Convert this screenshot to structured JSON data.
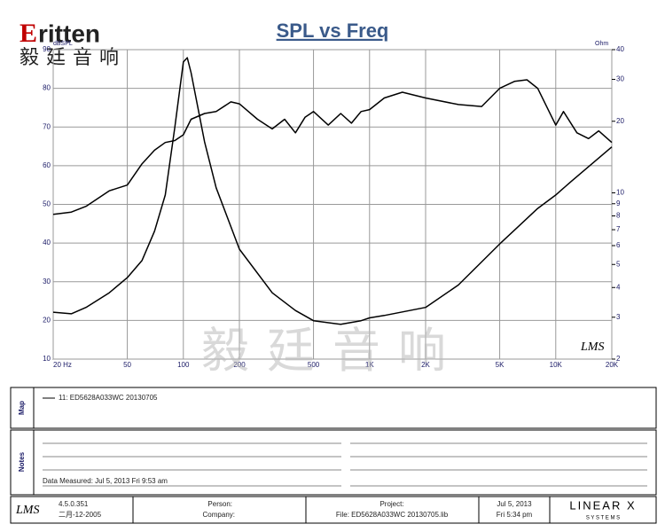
{
  "logo": {
    "brand": "ritten",
    "chinese": "毅廷音响"
  },
  "chart_data": {
    "type": "line",
    "title": "SPL vs Freq",
    "y_label": "dBSPL",
    "y2_label": "Ohm",
    "watermark": "毅廷音响",
    "software_mark": "LMS",
    "xscale": "log",
    "y2scale": "log",
    "grid": true,
    "xlim": [
      20,
      20000
    ],
    "xticks": [
      {
        "value": 20,
        "label": "20 Hz"
      },
      50,
      100,
      200,
      500,
      {
        "value": 1000,
        "label": "1K"
      },
      {
        "value": 2000,
        "label": "2K"
      },
      {
        "value": 5000,
        "label": "5K"
      },
      {
        "value": 10000,
        "label": "10K"
      },
      {
        "value": 20000,
        "label": "20K"
      }
    ],
    "ylim": [
      10,
      90
    ],
    "yticks": [
      10,
      20,
      30,
      40,
      50,
      60,
      70,
      80,
      90
    ],
    "y2lim": [
      2,
      40
    ],
    "y2ticks": [
      2,
      3,
      4,
      5,
      6,
      7,
      8,
      9,
      10,
      20,
      30,
      40
    ],
    "series": [
      {
        "name": "11: ED5628A033WC   20130705",
        "color": "#000000",
        "x": [
          20,
          25,
          30,
          40,
          50,
          60,
          70,
          80,
          90,
          100,
          110,
          130,
          150,
          180,
          200,
          250,
          300,
          350,
          400,
          450,
          500,
          600,
          700,
          800,
          900,
          1000,
          1200,
          1500,
          2000,
          3000,
          4000,
          5000,
          6000,
          7000,
          8000,
          10000,
          11000,
          13000,
          15000,
          17000,
          20000
        ],
        "values": [
          47.4,
          48,
          49.5,
          53.5,
          55,
          60.5,
          64,
          66,
          66.5,
          68,
          72,
          73.5,
          74,
          76.5,
          76,
          72,
          69.5,
          72,
          68.5,
          72.5,
          74,
          70.5,
          73.5,
          71,
          74,
          74.5,
          77.5,
          79,
          77.5,
          75.8,
          75.3,
          80,
          81.8,
          82.2,
          80,
          70.5,
          74,
          68.5,
          67,
          69,
          66
        ]
      },
      {
        "color": "#000000",
        "axis": "y2",
        "x": [
          20,
          25,
          30,
          40,
          50,
          60,
          70,
          80,
          90,
          100,
          105,
          110,
          130,
          150,
          200,
          300,
          400,
          500,
          700,
          900,
          1000,
          1200,
          2000,
          3000,
          5000,
          8000,
          10000,
          12000,
          20000
        ],
        "values": [
          3.15,
          3.1,
          3.3,
          3.8,
          4.4,
          5.2,
          6.9,
          9.8,
          18.9,
          35.5,
          37,
          32,
          16.4,
          10.5,
          5.8,
          3.8,
          3.2,
          2.9,
          2.8,
          2.9,
          2.98,
          3.05,
          3.3,
          4.1,
          6.1,
          8.6,
          9.8,
          11.1,
          15.6
        ]
      }
    ]
  },
  "map_label": "Map",
  "notes_label": "Notes",
  "notes": {
    "measured": "Data Measured: Jul  5, 2013  Fri  9:53 am"
  },
  "footer": {
    "version": "4.5.0.351",
    "build_date": "二月-12-2005",
    "person": "Person:",
    "company": "Company:",
    "project": "Project:",
    "file": "File: ED5628A033WC  20130705.lib",
    "date": "Jul  5, 2013",
    "time": "Fri  5:34 pm",
    "vendor": "LINEAR X",
    "vendor_sub": "S Y S T E M S"
  }
}
